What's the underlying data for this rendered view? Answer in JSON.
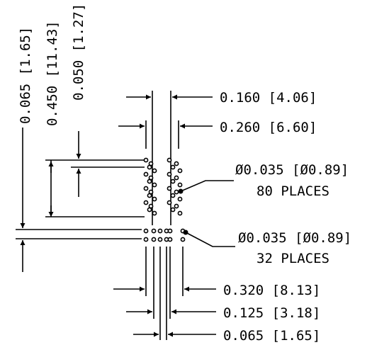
{
  "vertical_dims": {
    "d1": "0.065 [1.65]",
    "d2": "0.450 [11.43]",
    "d3": "0.050 [1.27]"
  },
  "horizontal_dims": {
    "top1": "0.160 [4.06]",
    "top2": "0.260 [6.60]",
    "bottom1": "0.320 [8.13]",
    "bottom2": "0.125 [3.18]",
    "bottom3": "0.065 [1.65]"
  },
  "callouts": {
    "upper": {
      "diameter": "Ø0.035 [Ø0.89]",
      "count": "80 PLACES"
    },
    "lower": {
      "diameter": "Ø0.035 [Ø0.89]",
      "count": "32 PLACES"
    }
  }
}
